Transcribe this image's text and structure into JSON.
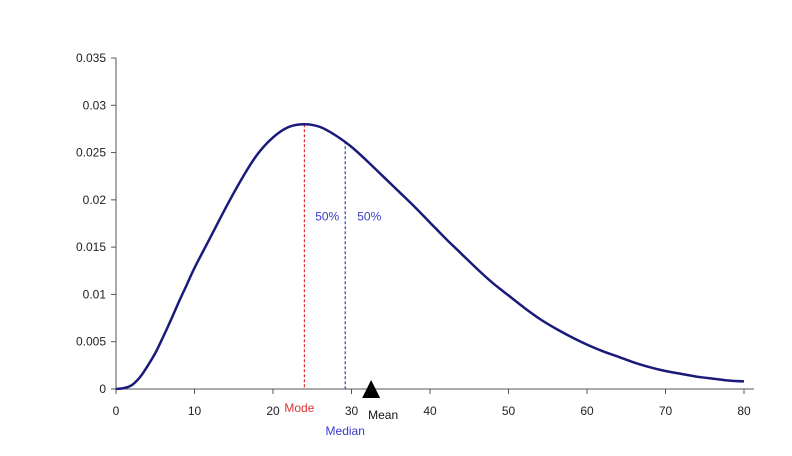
{
  "chart_data": {
    "type": "line",
    "title": "",
    "xlabel": "",
    "ylabel": "",
    "xlim": [
      0,
      80
    ],
    "ylim": [
      0,
      0.035
    ],
    "xticks": [
      0,
      10,
      20,
      30,
      40,
      50,
      60,
      70,
      80
    ],
    "xtick_labels": [
      "0",
      "10",
      "20",
      "30",
      "40",
      "50",
      "60",
      "70",
      "80"
    ],
    "yticks": [
      0,
      0.005,
      0.01,
      0.015,
      0.02,
      0.025,
      0.03,
      0.035
    ],
    "ytick_labels": [
      "0",
      "0.005",
      "0.01",
      "0.015",
      "0.02",
      "0.025",
      "0.03",
      "0.035"
    ],
    "grid": false,
    "series": [
      {
        "color": "#1a1a7a",
        "x": [
          0,
          1,
          2,
          3,
          4,
          5,
          6,
          7,
          8,
          9,
          10,
          12,
          14,
          16,
          18,
          20,
          22,
          24,
          26,
          28,
          30,
          32,
          34,
          36,
          38,
          40,
          42,
          44,
          46,
          48,
          50,
          52,
          54,
          56,
          58,
          60,
          62,
          64,
          66,
          68,
          70,
          72,
          74,
          76,
          78,
          80
        ],
        "y": [
          0,
          0.0001,
          0.0004,
          0.0012,
          0.0024,
          0.0038,
          0.0055,
          0.0073,
          0.0092,
          0.011,
          0.0128,
          0.016,
          0.0192,
          0.0222,
          0.0248,
          0.0266,
          0.0277,
          0.028,
          0.0277,
          0.0268,
          0.0256,
          0.0241,
          0.0225,
          0.0209,
          0.0193,
          0.0176,
          0.0159,
          0.0143,
          0.0127,
          0.0112,
          0.0099,
          0.0086,
          0.0074,
          0.0064,
          0.0055,
          0.0047,
          0.004,
          0.0034,
          0.0028,
          0.0023,
          0.0019,
          0.0016,
          0.0013,
          0.0011,
          0.0009,
          0.0008
        ]
      }
    ],
    "annotations": {
      "mode": {
        "label": "Mode",
        "x": 24,
        "y": 0.028,
        "color": "#e03030"
      },
      "median": {
        "label": "Median",
        "x": 29.2,
        "y": 0.0262,
        "color": "#3b3bd0"
      },
      "mean": {
        "label": "Mean",
        "x": 32.5
      },
      "left_percent": "50%",
      "right_percent": "50%"
    }
  }
}
